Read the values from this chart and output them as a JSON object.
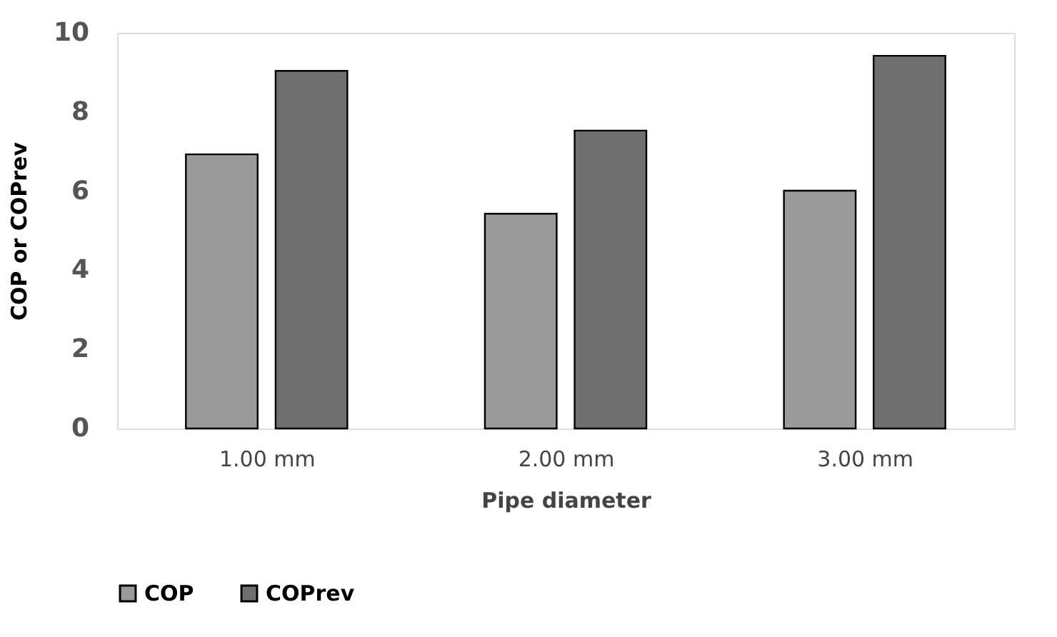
{
  "chart_data": {
    "type": "bar",
    "xlabel": "Pipe diameter",
    "ylabel": "COP or COPrev",
    "categories": [
      "1.00 mm",
      "2.00 mm",
      "3.00 mm"
    ],
    "series": [
      {
        "name": "COP",
        "color": "#9a9a9a",
        "values": [
          6.93,
          5.43,
          6.01
        ]
      },
      {
        "name": "COPrev",
        "color": "#6f6f6f",
        "values": [
          9.04,
          7.53,
          9.42
        ]
      }
    ],
    "ylim": [
      0,
      10
    ],
    "yticks": [
      0,
      2,
      4,
      6,
      8,
      10
    ],
    "grid": false,
    "legend": "bottom"
  }
}
